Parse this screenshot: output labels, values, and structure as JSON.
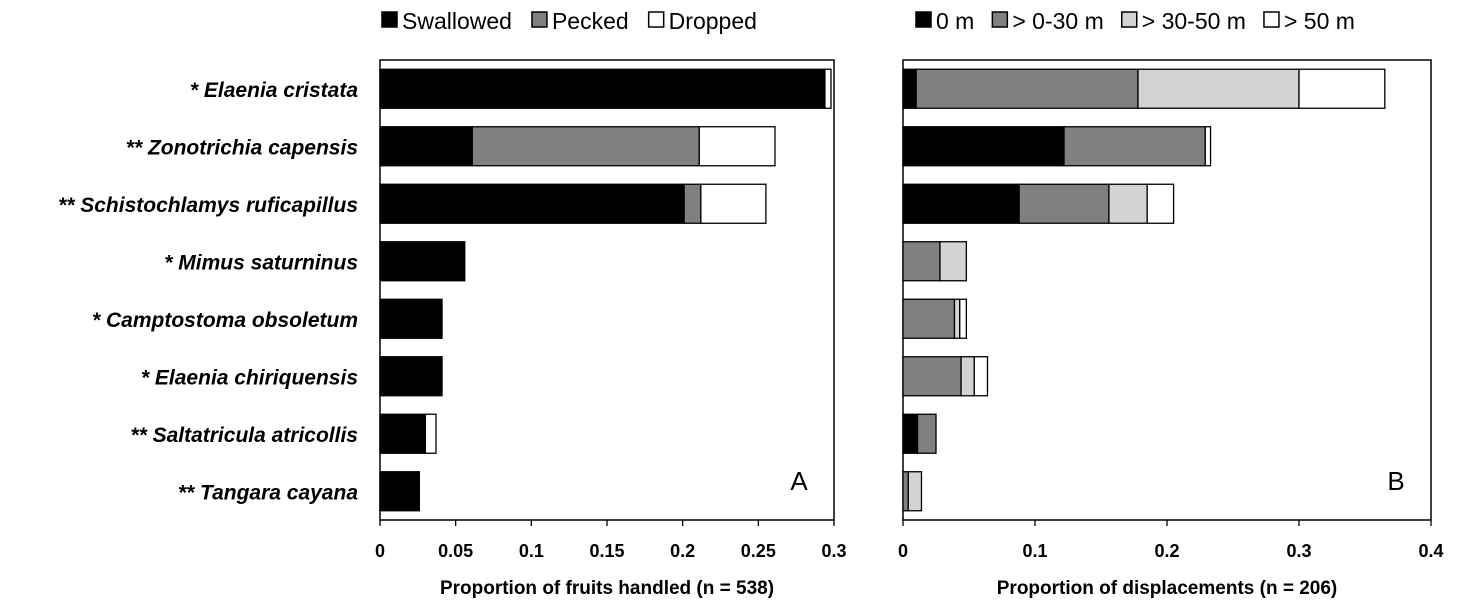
{
  "chart_data": [
    {
      "type": "bar",
      "orientation": "horizontal",
      "stacked": true,
      "panel_label": "A",
      "xlabel": "Proportion of fruits handled (n = 538)",
      "xlim": [
        0,
        0.3
      ],
      "xticks": [
        "0",
        "0.05",
        "0.1",
        "0.15",
        "0.2",
        "0.25",
        "0.3"
      ],
      "categories": [
        {
          "prefix": "*",
          "name": "Elaenia cristata"
        },
        {
          "prefix": "**",
          "name": "Zonotrichia capensis"
        },
        {
          "prefix": "**",
          "name": "Schistochlamys ruficapillus"
        },
        {
          "prefix": "*",
          "name": "Mimus saturninus"
        },
        {
          "prefix": "*",
          "name": "Camptostoma obsoletum"
        },
        {
          "prefix": "*",
          "name": "Elaenia chiriquensis"
        },
        {
          "prefix": "**",
          "name": "Saltatricula atricollis"
        },
        {
          "prefix": "**",
          "name": "Tangara cayana"
        }
      ],
      "series": [
        {
          "name": "Swallowed",
          "color": "#000000",
          "values": [
            0.294,
            0.061,
            0.201,
            0.056,
            0.041,
            0.041,
            0.03,
            0.026
          ]
        },
        {
          "name": "Pecked",
          "color": "#808080",
          "values": [
            0,
            0.15,
            0.011,
            0,
            0,
            0,
            0,
            0
          ]
        },
        {
          "name": "Dropped",
          "color": "#ffffff",
          "values": [
            0.004,
            0.05,
            0.043,
            0,
            0,
            0,
            0.007,
            0
          ]
        }
      ],
      "legend_position": "top"
    },
    {
      "type": "bar",
      "orientation": "horizontal",
      "stacked": true,
      "panel_label": "B",
      "xlabel": "Proportion of displacements (n = 206)",
      "xlim": [
        0,
        0.4
      ],
      "xticks": [
        "0",
        "0.1",
        "0.2",
        "0.3",
        "0.4"
      ],
      "series": [
        {
          "name": "0 m",
          "color": "#000000",
          "values": [
            0.01,
            0.122,
            0.088,
            0,
            0,
            0,
            0.011,
            0
          ]
        },
        {
          "name": "> 0-30 m",
          "color": "#808080",
          "values": [
            0.168,
            0.107,
            0.068,
            0.028,
            0.039,
            0.044,
            0.014,
            0.004
          ]
        },
        {
          "name": "> 30-50 m",
          "color": "#d3d3d3",
          "values": [
            0.122,
            0,
            0.029,
            0.02,
            0.004,
            0.01,
            0,
            0.01
          ]
        },
        {
          "name": "> 50 m",
          "color": "#ffffff",
          "values": [
            0.065,
            0.004,
            0.02,
            0,
            0.005,
            0.01,
            0,
            0
          ]
        }
      ],
      "legend_position": "top"
    }
  ]
}
